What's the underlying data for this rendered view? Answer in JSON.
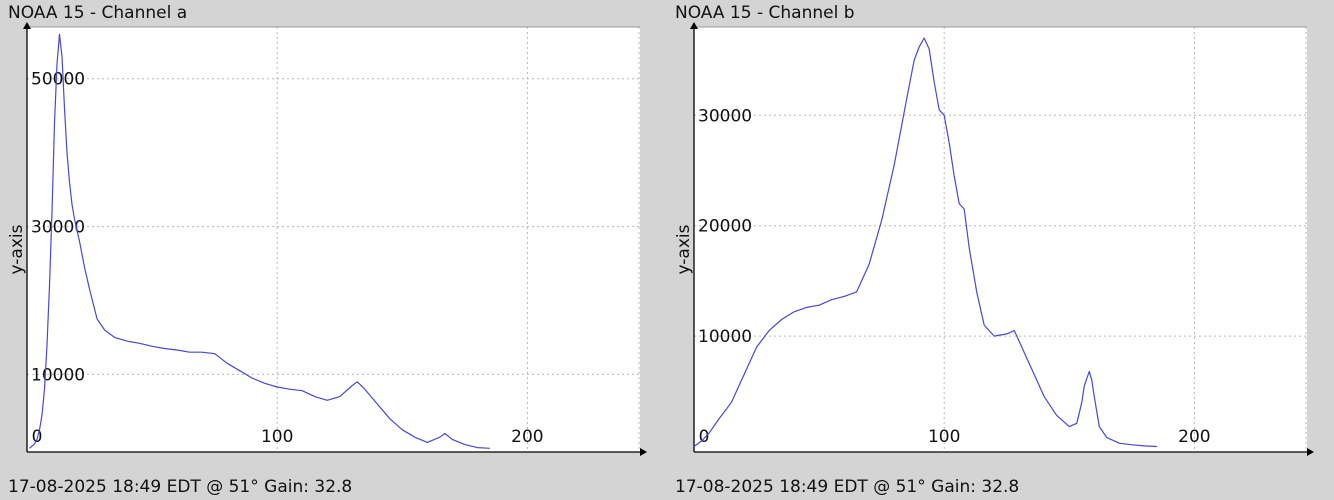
{
  "chart_data": [
    {
      "type": "line",
      "title": "NOAA 15 - Channel a",
      "footer": "17-08-2025 18:49 EDT @ 51° Gain: 32.8",
      "xlabel": "",
      "ylabel": "y-axis",
      "xlim": [
        0,
        245
      ],
      "ylim": [
        -500,
        57000
      ],
      "x_ticks": [
        0,
        100,
        200
      ],
      "y_ticks": [
        10000,
        30000,
        50000
      ],
      "grid": true,
      "color": "#4848d8",
      "series": [
        {
          "x": [
            1,
            2,
            3,
            4,
            5,
            6,
            7,
            8,
            9,
            10,
            11,
            12,
            13,
            14,
            15,
            16,
            17,
            18,
            19,
            20,
            21,
            23,
            25,
            28,
            31,
            35,
            40,
            45,
            50,
            55,
            60,
            65,
            70,
            75,
            80,
            85,
            90,
            95,
            100,
            105,
            110,
            115,
            120,
            125,
            130,
            132,
            135,
            140,
            145,
            150,
            155,
            160,
            165,
            167,
            170,
            175,
            180,
            185
          ],
          "y": [
            0,
            300,
            600,
            1200,
            2500,
            4500,
            8000,
            14000,
            22000,
            32000,
            44000,
            52000,
            56000,
            53000,
            46000,
            40000,
            36000,
            33000,
            31000,
            29500,
            28000,
            24500,
            21500,
            17500,
            16000,
            15000,
            14500,
            14200,
            13800,
            13500,
            13300,
            13000,
            13000,
            12800,
            11500,
            10500,
            9500,
            8800,
            8300,
            8000,
            7800,
            7000,
            6500,
            7000,
            8500,
            9000,
            8000,
            6000,
            4000,
            2500,
            1500,
            800,
            1500,
            2000,
            1200,
            500,
            100,
            0
          ]
        }
      ]
    },
    {
      "type": "line",
      "title": "NOAA 15 - Channel b",
      "footer": "17-08-2025 18:49 EDT @ 51° Gain: 32.8",
      "xlabel": "",
      "ylabel": "y-axis",
      "xlim": [
        0,
        245
      ],
      "ylim": [
        -500,
        38000
      ],
      "x_ticks": [
        0,
        100,
        200
      ],
      "y_ticks": [
        10000,
        20000,
        30000
      ],
      "grid": true,
      "color": "#4848d8",
      "series": [
        {
          "x": [
            0,
            3,
            6,
            10,
            15,
            20,
            25,
            30,
            35,
            40,
            45,
            50,
            55,
            60,
            65,
            70,
            75,
            80,
            85,
            88,
            90,
            92,
            94,
            96,
            98,
            100,
            102,
            104,
            106,
            108,
            110,
            113,
            116,
            120,
            125,
            128,
            130,
            135,
            140,
            145,
            150,
            153,
            155,
            156,
            158,
            159,
            160,
            162,
            165,
            170,
            175,
            180,
            185
          ],
          "y": [
            0,
            500,
            1200,
            2500,
            4000,
            6500,
            9000,
            10500,
            11500,
            12200,
            12600,
            12800,
            13300,
            13600,
            14000,
            16500,
            20500,
            25500,
            31500,
            35000,
            36200,
            37000,
            36000,
            33000,
            30500,
            30000,
            27500,
            24500,
            22000,
            21500,
            18000,
            14000,
            11000,
            10000,
            10200,
            10500,
            9500,
            7000,
            4500,
            2800,
            1800,
            2100,
            4000,
            5500,
            6800,
            6000,
            4500,
            1800,
            800,
            300,
            150,
            50,
            0
          ]
        }
      ]
    }
  ]
}
